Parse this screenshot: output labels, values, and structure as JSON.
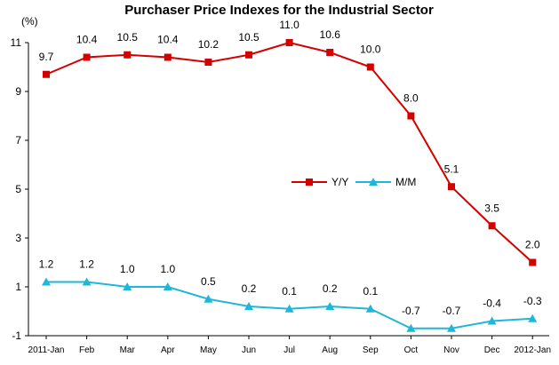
{
  "chart_data": {
    "type": "line",
    "title": "Purchaser Price Indexes for the Industrial Sector",
    "unit_label": "(%)",
    "categories": [
      "2011-Jan",
      "Feb",
      "Mar",
      "Apr",
      "May",
      "Jun",
      "Jul",
      "Aug",
      "Sep",
      "Oct",
      "Nov",
      "Dec",
      "2012-Jan"
    ],
    "ylim": [
      -1,
      11
    ],
    "yticks": [
      -1,
      1,
      3,
      5,
      7,
      9,
      11
    ],
    "grid": false,
    "legend_position": "center-right",
    "series": [
      {
        "name": "Y/Y",
        "color": "#d40000",
        "marker": "square",
        "values": [
          9.7,
          10.4,
          10.5,
          10.4,
          10.2,
          10.5,
          11.0,
          10.6,
          10.0,
          8.0,
          5.1,
          3.5,
          2.0
        ],
        "labels": [
          "9.7",
          "10.4",
          "10.5",
          "10.4",
          "10.2",
          "10.5",
          "11.0",
          "10.6",
          "10.0",
          "8.0",
          "5.1",
          "3.5",
          "2.0"
        ]
      },
      {
        "name": "M/M",
        "color": "#1fb7d9",
        "marker": "triangle",
        "values": [
          1.2,
          1.2,
          1.0,
          1.0,
          0.5,
          0.2,
          0.1,
          0.2,
          0.1,
          -0.7,
          -0.7,
          -0.4,
          -0.3
        ],
        "labels": [
          "1.2",
          "1.2",
          "1.0",
          "1.0",
          "0.5",
          "0.2",
          "0.1",
          "0.2",
          "0.1",
          "-0.7",
          "-0.7",
          "-0.4",
          "-0.3"
        ]
      }
    ]
  }
}
